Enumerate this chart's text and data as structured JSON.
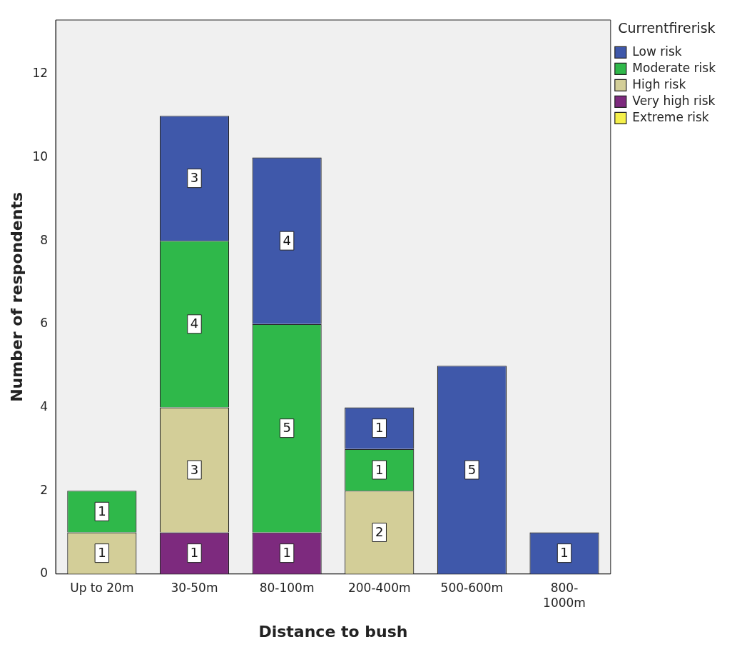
{
  "chart_data": {
    "type": "bar",
    "xlabel": "Distance to bush",
    "ylabel": "Number of respondents",
    "legend_title": "Currentfirerisk",
    "categories": [
      "Up to 20m",
      "30-50m",
      "80-100m",
      "200-400m",
      "500-600m",
      "800-1000m"
    ],
    "stacked": true,
    "series": [
      {
        "name": "Extreme risk",
        "color": "#f5f04a",
        "values": [
          null,
          null,
          null,
          null,
          null,
          null
        ]
      },
      {
        "name": "Very high risk",
        "color": "#7d2a7e",
        "values": [
          null,
          1,
          1,
          null,
          null,
          null
        ]
      },
      {
        "name": "High risk",
        "color": "#d3ce98",
        "values": [
          1,
          3,
          null,
          2,
          null,
          null
        ]
      },
      {
        "name": "Moderate risk",
        "color": "#2fb84a",
        "values": [
          1,
          4,
          5,
          1,
          null,
          null
        ]
      },
      {
        "name": "Low risk",
        "color": "#3f58aa",
        "values": [
          null,
          3,
          4,
          1,
          5,
          1
        ]
      }
    ],
    "ylim": [
      0,
      13.3
    ],
    "yticks": [
      0,
      2,
      4,
      6,
      8,
      10,
      12
    ],
    "grid": false,
    "legend": "top right",
    "data_labels": true
  }
}
